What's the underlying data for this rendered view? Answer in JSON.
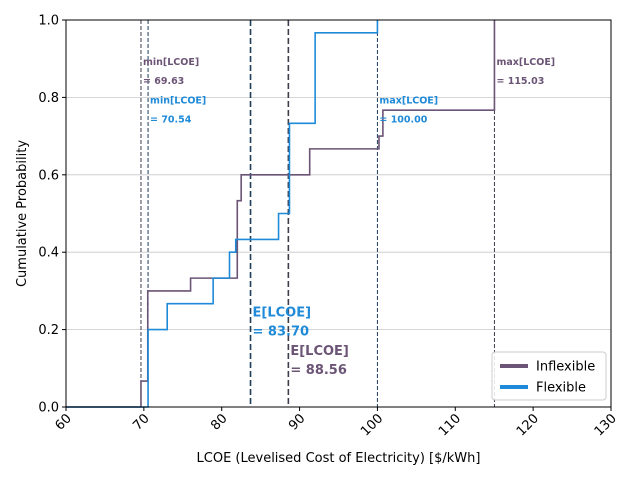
{
  "chart_data": {
    "type": "line",
    "xlabel": "LCOE (Levelised Cost of Electricity) [$/kWh]",
    "ylabel": "Cumulative Probability",
    "xlim": [
      60,
      130
    ],
    "ylim": [
      0,
      1.0
    ],
    "xticks": [
      "60",
      "70",
      "80",
      "90",
      "100",
      "110",
      "120",
      "130"
    ],
    "xtick_values": [
      60,
      70,
      80,
      90,
      100,
      110,
      120,
      130
    ],
    "yticks": [
      "0.0",
      "0.2",
      "0.4",
      "0.6",
      "0.8",
      "1.0"
    ],
    "ytick_values": [
      0,
      0.2,
      0.4,
      0.6,
      0.8,
      1.0
    ],
    "grid": "horizontal",
    "legend_position": "lower-right",
    "series": [
      {
        "name": "Inflexible",
        "color": "#6b5475",
        "steps": [
          [
            60,
            0
          ],
          [
            69.63,
            0.067
          ],
          [
            70.5,
            0.3
          ],
          [
            76.0,
            0.333
          ],
          [
            82.0,
            0.533
          ],
          [
            82.5,
            0.6
          ],
          [
            91.3,
            0.667
          ],
          [
            100.2,
            0.7
          ],
          [
            100.7,
            0.767
          ],
          [
            115.03,
            1.0
          ]
        ]
      },
      {
        "name": "Flexible",
        "color": "#1f8ad8",
        "steps": [
          [
            60,
            0
          ],
          [
            70.54,
            0.2
          ],
          [
            73.0,
            0.267
          ],
          [
            78.9,
            0.333
          ],
          [
            81.0,
            0.4
          ],
          [
            81.8,
            0.433
          ],
          [
            87.3,
            0.5
          ],
          [
            88.7,
            0.733
          ],
          [
            92.0,
            0.967
          ],
          [
            100.0,
            1.0
          ]
        ]
      }
    ],
    "vlines": [
      {
        "x": 69.63,
        "color": "#3d3d4d",
        "style": "thin"
      },
      {
        "x": 70.54,
        "color": "#1f3d5a",
        "style": "thin"
      },
      {
        "x": 100.0,
        "color": "#1f3d5a",
        "style": "thin"
      },
      {
        "x": 115.03,
        "color": "#3d3d4d",
        "style": "thin"
      },
      {
        "x": 83.7,
        "color": "#1f3d5a",
        "style": "thick"
      },
      {
        "x": 88.56,
        "color": "#3d3d4d",
        "style": "thick"
      }
    ],
    "annotations": [
      {
        "line1": "min[LCOE]",
        "line2": "= 69.63",
        "x": 69.63,
        "y": 0.84,
        "color": "#6b5475",
        "size": "small"
      },
      {
        "line1": "min[LCOE]",
        "line2": "= 70.54",
        "x": 70.54,
        "y": 0.74,
        "color": "#1f8ad8",
        "size": "small"
      },
      {
        "line1": "max[LCOE]",
        "line2": "= 100.00",
        "x": 100.0,
        "y": 0.74,
        "color": "#1f8ad8",
        "size": "small"
      },
      {
        "line1": "max[LCOE]",
        "line2": "= 115.03",
        "x": 115.03,
        "y": 0.84,
        "color": "#6b5475",
        "size": "small"
      },
      {
        "line1": "E[LCOE]",
        "line2": "= 83.70",
        "x": 83.7,
        "y": 0.19,
        "color": "#1f8ad8",
        "size": "large"
      },
      {
        "line1": "E[LCOE]",
        "line2": "= 88.56",
        "x": 88.56,
        "y": 0.09,
        "color": "#6b5475",
        "size": "large"
      }
    ]
  }
}
